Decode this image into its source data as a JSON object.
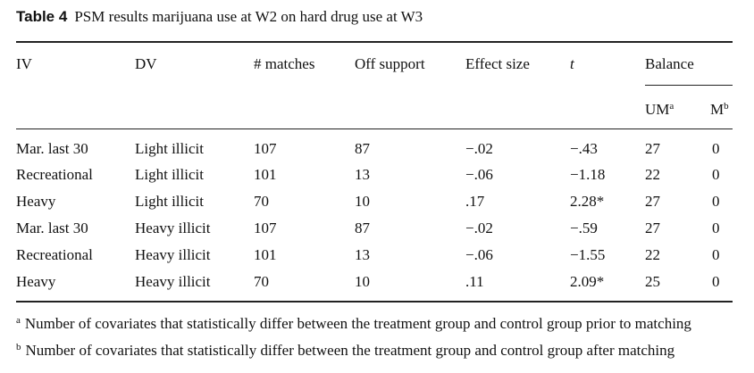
{
  "table": {
    "label": "Table 4",
    "title": "PSM results marijuana use at W2 on hard drug use at W3",
    "headers": {
      "iv": "IV",
      "dv": "DV",
      "matches": "# matches",
      "off_support": "Off support",
      "effect_size": "Effect size",
      "t": "t",
      "balance": "Balance",
      "um": "UM",
      "um_sup": "a",
      "m": "M",
      "m_sup": "b"
    },
    "rows": [
      {
        "iv": "Mar. last 30",
        "dv": "Light illicit",
        "matches": "107",
        "off": "87",
        "effect": "−.02",
        "t": "−.43",
        "um": "27",
        "m": "0"
      },
      {
        "iv": "Recreational",
        "dv": "Light illicit",
        "matches": "101",
        "off": "13",
        "effect": "−.06",
        "t": "−1.18",
        "um": "22",
        "m": "0"
      },
      {
        "iv": "Heavy",
        "dv": "Light illicit",
        "matches": "70",
        "off": "10",
        "effect": ".17",
        "t": "2.28*",
        "um": "27",
        "m": "0"
      },
      {
        "iv": "Mar. last 30",
        "dv": "Heavy illicit",
        "matches": "107",
        "off": "87",
        "effect": "−.02",
        "t": "−.59",
        "um": "27",
        "m": "0"
      },
      {
        "iv": "Recreational",
        "dv": "Heavy illicit",
        "matches": "101",
        "off": "13",
        "effect": "−.06",
        "t": "−1.55",
        "um": "22",
        "m": "0"
      },
      {
        "iv": "Heavy",
        "dv": "Heavy illicit",
        "matches": "70",
        "off": "10",
        "effect": ".11",
        "t": "2.09*",
        "um": "25",
        "m": "0"
      }
    ],
    "footnotes": [
      {
        "mark": "a",
        "text": "Number of covariates that statistically differ between the treatment group and control group prior to matching"
      },
      {
        "mark": "b",
        "text": "Number of covariates that statistically differ between the treatment group and control group after matching"
      }
    ]
  }
}
